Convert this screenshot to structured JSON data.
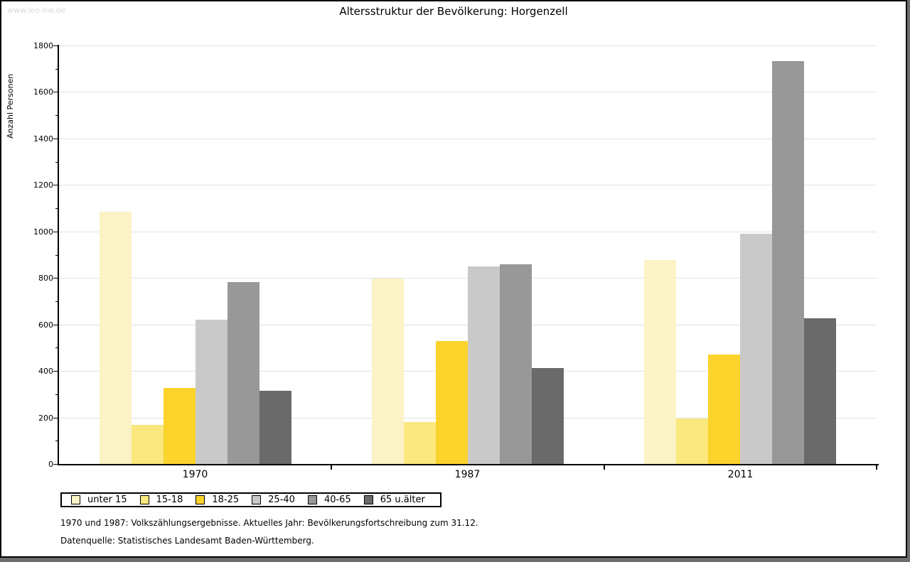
{
  "watermark": "www.leo-bw.de",
  "title": "Altersstruktur der Bevölkerung: Horgenzell",
  "chart_data": {
    "type": "bar",
    "title": "Altersstruktur der Bevölkerung: Horgenzell",
    "categories": [
      "1970",
      "1987",
      "2011"
    ],
    "series": [
      {
        "name": "unter 15",
        "color": "#FBF2C6",
        "values": [
          1084,
          797,
          878
        ]
      },
      {
        "name": "15-18",
        "color": "#FAE87E",
        "values": [
          167,
          180,
          197
        ]
      },
      {
        "name": "18-25",
        "color": "#FBD32B",
        "values": [
          327,
          528,
          470
        ]
      },
      {
        "name": "25-40",
        "color": "#C9C9C9",
        "values": [
          619,
          849,
          991
        ]
      },
      {
        "name": "40-65",
        "color": "#989898",
        "values": [
          782,
          859,
          1732
        ]
      },
      {
        "name": "65 u.älter",
        "color": "#6A6A6A",
        "values": [
          314,
          412,
          625
        ]
      }
    ],
    "xlabel": "",
    "ylabel": "Anzahl Personen",
    "ylim": [
      0,
      1800
    ],
    "ytick_step": 200,
    "yminor_step": 100,
    "grid": true,
    "legend_position": "bottom-left"
  },
  "theme": {
    "grid_color": "#E3E3E3",
    "axis_color": "#000000",
    "background": "#FFFFFF",
    "chrome_color": "#6E6E6E",
    "watermark_color": "#DCDCDC"
  },
  "footnotes": {
    "line1": "1970 und 1987: Volkszählungsergebnisse. Aktuelles Jahr: Bevölkerungsfortschreibung zum 31.12.",
    "line2": "Datenquelle: Statistisches Landesamt Baden-Württemberg."
  }
}
